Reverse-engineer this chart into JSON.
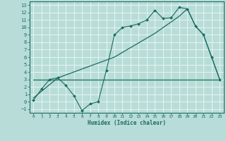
{
  "xlabel": "Humidex (Indice chaleur)",
  "xlim": [
    -0.5,
    23.5
  ],
  "ylim": [
    -1.5,
    13.5
  ],
  "xticks": [
    0,
    1,
    2,
    3,
    4,
    5,
    6,
    7,
    8,
    9,
    10,
    11,
    12,
    13,
    14,
    15,
    16,
    17,
    18,
    19,
    20,
    21,
    22,
    23
  ],
  "yticks": [
    -1,
    0,
    1,
    2,
    3,
    4,
    5,
    6,
    7,
    8,
    9,
    10,
    11,
    12,
    13
  ],
  "bg_color": "#b8ddd8",
  "grid_color": "#e8f4f0",
  "line_color": "#1a6b60",
  "curve1_x": [
    0,
    1,
    2,
    3,
    4,
    5,
    6,
    7,
    8,
    9,
    10,
    11,
    12,
    13,
    14,
    15,
    16,
    17,
    18,
    19,
    20,
    21,
    22,
    23
  ],
  "curve1_y": [
    0.2,
    1.7,
    3.0,
    3.2,
    2.2,
    0.8,
    -1.2,
    -0.3,
    0.0,
    4.2,
    9.0,
    10.0,
    10.2,
    10.5,
    11.0,
    12.3,
    11.2,
    11.3,
    12.7,
    12.5,
    10.2,
    9.0,
    6.0,
    3.0
  ],
  "curve2_x": [
    0,
    23
  ],
  "curve2_y": [
    3.0,
    3.0
  ],
  "curve3_x": [
    0,
    3,
    10,
    15,
    18,
    19,
    20,
    21,
    22,
    23
  ],
  "curve3_y": [
    0.5,
    3.2,
    6.0,
    9.2,
    11.5,
    12.5,
    10.2,
    9.0,
    6.0,
    3.0
  ]
}
